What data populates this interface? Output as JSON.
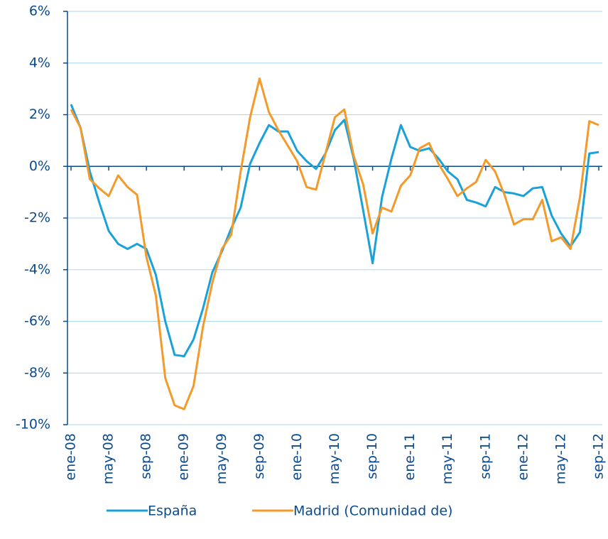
{
  "chart_data": {
    "type": "line",
    "categories": [
      "ene-08",
      null,
      null,
      null,
      "may-08",
      null,
      null,
      null,
      "sep-08",
      null,
      null,
      null,
      "ene-09",
      null,
      null,
      null,
      "may-09",
      null,
      null,
      null,
      "sep-09",
      null,
      null,
      null,
      "ene-10",
      null,
      null,
      null,
      "may-10",
      null,
      null,
      null,
      "sep-10",
      null,
      null,
      null,
      "ene-11",
      null,
      null,
      null,
      "may-11",
      null,
      null,
      null,
      "sep-11",
      null,
      null,
      null,
      "ene-12",
      null,
      null,
      null,
      "may-12",
      null,
      null,
      null,
      "sep-12"
    ],
    "series": [
      {
        "name": "España",
        "color": "#1ba1d9",
        "values": [
          2.4,
          1.5,
          -0.2,
          -1.4,
          -2.5,
          -3.0,
          -3.2,
          -3.0,
          -3.2,
          -4.2,
          -6.0,
          -7.3,
          -7.35,
          -6.7,
          -5.5,
          -4.1,
          -3.3,
          -2.4,
          -1.6,
          0.1,
          0.9,
          1.6,
          1.35,
          1.35,
          0.6,
          0.2,
          -0.1,
          0.5,
          1.4,
          1.8,
          0.3,
          -1.7,
          -3.75,
          -1.2,
          0.3,
          1.6,
          0.75,
          0.6,
          0.7,
          0.3,
          -0.2,
          -0.5,
          -1.3,
          -1.4,
          -1.55,
          -0.8,
          -1.0,
          -1.05,
          -1.15,
          -0.85,
          -0.8,
          -1.9,
          -2.6,
          -3.1,
          -2.55,
          0.5,
          0.55
        ]
      },
      {
        "name": "Madrid (Comunidad de)",
        "color": "#f39a2b",
        "values": [
          2.2,
          1.5,
          -0.5,
          -0.85,
          -1.15,
          -0.35,
          -0.8,
          -1.1,
          -3.5,
          -5.0,
          -8.2,
          -9.25,
          -9.4,
          -8.5,
          -6.2,
          -4.5,
          -3.2,
          -2.65,
          -0.2,
          1.9,
          3.4,
          2.1,
          1.4,
          0.8,
          0.2,
          -0.8,
          -0.9,
          0.5,
          1.9,
          2.2,
          0.4,
          -0.7,
          -2.6,
          -1.6,
          -1.75,
          -0.75,
          -0.35,
          0.7,
          0.9,
          0.1,
          -0.5,
          -1.15,
          -0.85,
          -0.6,
          0.25,
          -0.2,
          -1.1,
          -2.25,
          -2.05,
          -2.05,
          -1.3,
          -2.9,
          -2.75,
          -3.2,
          -1.2,
          1.75,
          1.6
        ]
      }
    ],
    "ylim": [
      -10,
      6
    ],
    "yticks": [
      {
        "value": -10,
        "label": "-10%"
      },
      {
        "value": -8,
        "label": "-8%"
      },
      {
        "value": -6,
        "label": "-6%"
      },
      {
        "value": -4,
        "label": "-4%"
      },
      {
        "value": -2,
        "label": "-2%"
      },
      {
        "value": 0,
        "label": "0%"
      },
      {
        "value": 2,
        "label": "2%"
      },
      {
        "value": 4,
        "label": "4%"
      },
      {
        "value": 6,
        "label": "6%"
      }
    ],
    "grid": true,
    "legend": "bottom"
  }
}
